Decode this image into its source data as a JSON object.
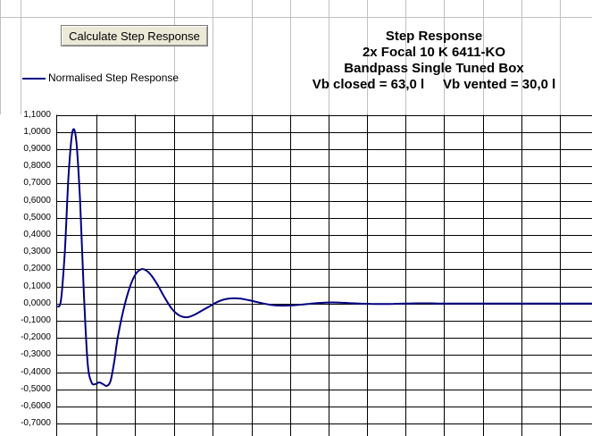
{
  "button": {
    "label": "Calculate Step Response"
  },
  "title": {
    "line1": "Step Response",
    "line2": "2x Focal 10 K 6411-KO",
    "line3": "Bandpass Single Tuned Box",
    "line4": "Vb closed = 63,0 l     Vb vented = 30,0 l"
  },
  "colors": {
    "series": "#000080",
    "grid": "#000000",
    "sheet_grid": "#c0c0c0"
  },
  "chart_data": {
    "type": "line",
    "title": "",
    "xlabel": "",
    "ylabel": "",
    "ylim": [
      -0.8,
      1.1
    ],
    "y_visible_max": 1.1,
    "grid": true,
    "legend": "top-left",
    "y_ticks": [
      "1,1000",
      "1,0000",
      "0,9000",
      "0,8000",
      "0,7000",
      "0,6000",
      "0,5000",
      "0,4000",
      "0,3000",
      "0,2000",
      "0,1000",
      "0,0000",
      "-0,1000",
      "-0,2000",
      "-0,3000",
      "-0,4000",
      "-0,5000",
      "-0,6000",
      "-0,7000"
    ],
    "y_tick_values": [
      1.1,
      1.0,
      0.9,
      0.8,
      0.7,
      0.6,
      0.5,
      0.4,
      0.3,
      0.2,
      0.1,
      0.0,
      -0.1,
      -0.2,
      -0.3,
      -0.4,
      -0.5,
      -0.6,
      -0.7
    ],
    "series": [
      {
        "name": "Normalised Step Response",
        "x": [
          0,
          1,
          2,
          3,
          4,
          5,
          6,
          7,
          8,
          9,
          10,
          11,
          12,
          13,
          14,
          15,
          16,
          18,
          20,
          22,
          24,
          26,
          28,
          30,
          32,
          34,
          36,
          38,
          40,
          42,
          44,
          46,
          48,
          50,
          52,
          54,
          56,
          58,
          60,
          62,
          64,
          66,
          68,
          70,
          72,
          74,
          76,
          78,
          80,
          82,
          84,
          86,
          88,
          90,
          92,
          94,
          96,
          98,
          100,
          102,
          104,
          106,
          108,
          110,
          112,
          114,
          116,
          118,
          120,
          122,
          124,
          126,
          128,
          130,
          132,
          134,
          136,
          138,
          140
        ],
        "y": [
          -0.02,
          0.02,
          0.3,
          0.75,
          1.0,
          0.95,
          0.6,
          0.05,
          -0.35,
          -0.46,
          -0.47,
          -0.46,
          -0.47,
          -0.48,
          -0.45,
          -0.33,
          -0.18,
          0.02,
          0.15,
          0.2,
          0.18,
          0.12,
          0.04,
          -0.03,
          -0.07,
          -0.08,
          -0.065,
          -0.04,
          -0.015,
          0.01,
          0.025,
          0.03,
          0.028,
          0.02,
          0.01,
          0.0,
          -0.008,
          -0.012,
          -0.012,
          -0.01,
          -0.006,
          -0.002,
          0.002,
          0.005,
          0.006,
          0.005,
          0.003,
          0.001,
          -0.001,
          -0.002,
          -0.003,
          -0.003,
          -0.002,
          -0.001,
          0.0,
          0.001,
          0.001,
          0.001,
          0.0,
          0.0,
          0.0,
          0.0,
          0.0,
          0.0,
          0.0,
          0.0,
          0.0,
          0.0,
          0.0,
          0.0,
          0.0,
          0.0,
          0.0,
          0.0,
          0.0,
          0.0,
          0.0,
          0.0,
          0.0
        ]
      }
    ]
  }
}
